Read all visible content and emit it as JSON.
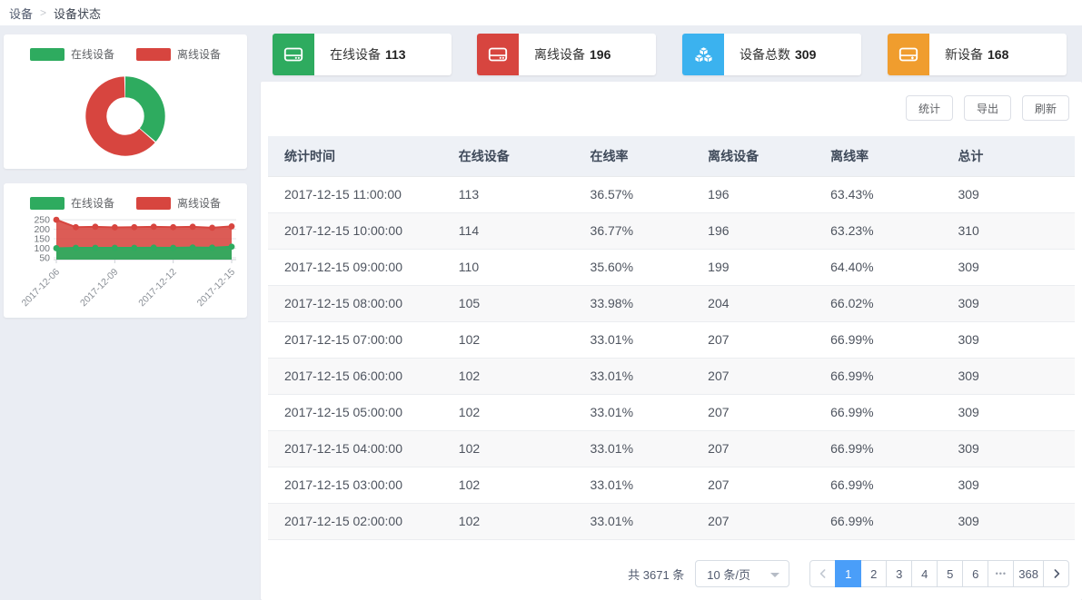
{
  "breadcrumb": {
    "separator": ">",
    "items": [
      {
        "label": "设备"
      },
      {
        "label": "设备状态"
      }
    ]
  },
  "colors": {
    "online_green": "#2eab5f",
    "offline_red": "#d7453f",
    "total_blue": "#3bb2ef",
    "new_orange": "#f09d2e",
    "accent_blue": "#4a9ef9"
  },
  "stat_cards": [
    {
      "key": "online-devices",
      "icon": "hdd-icon",
      "color": "#2eab5f",
      "label": "在线设备",
      "value": "113"
    },
    {
      "key": "offline-devices",
      "icon": "hdd-icon",
      "color": "#d7453f",
      "label": "离线设备",
      "value": "196"
    },
    {
      "key": "total-devices",
      "icon": "cubes-icon",
      "color": "#3bb2ef",
      "label": "设备总数",
      "value": "309"
    },
    {
      "key": "new-devices",
      "icon": "hdd-plus-icon",
      "color": "#f09d2e",
      "label": "新设备",
      "value": "168"
    }
  ],
  "legend": [
    {
      "label": "在线设备",
      "color": "#2eab5f"
    },
    {
      "label": "离线设备",
      "color": "#d7453f"
    }
  ],
  "chart_data": [
    {
      "type": "pie",
      "subtype": "donut",
      "labels": [
        "在线设备",
        "离线设备"
      ],
      "values": [
        113,
        196
      ],
      "colors": [
        "#2eab5f",
        "#d7453f"
      ],
      "legend_position": "top",
      "start_angle_deg": 90,
      "direction": "clockwise"
    },
    {
      "type": "area",
      "x": [
        "2017-12-06",
        "2017-12-07",
        "2017-12-08",
        "2017-12-09",
        "2017-12-10",
        "2017-12-11",
        "2017-12-12",
        "2017-12-13",
        "2017-12-14",
        "2017-12-15"
      ],
      "x_tick_labels": [
        "2017-12-06",
        "2017-12-09",
        "2017-12-12",
        "2017-12-15"
      ],
      "series": [
        {
          "name": "离线设备",
          "color": "#d7453f",
          "values": [
            250,
            211,
            213,
            210,
            211,
            213,
            211,
            213,
            208,
            215
          ]
        },
        {
          "name": "在线设备",
          "color": "#2eab5f",
          "values": [
            100,
            102,
            102,
            102,
            102,
            103,
            102,
            104,
            103,
            108
          ]
        }
      ],
      "y_ticks": [
        50,
        100,
        150,
        200,
        250
      ],
      "ylim": [
        40,
        260
      ],
      "grid": "horizontal",
      "legend_position": "top"
    }
  ],
  "toolbar": {
    "buttons": [
      {
        "label": "统计"
      },
      {
        "label": "导出"
      },
      {
        "label": "刷新"
      }
    ]
  },
  "table": {
    "columns": [
      "统计时间",
      "在线设备",
      "在线率",
      "离线设备",
      "离线率",
      "总计"
    ],
    "col_widths": [
      "21.6%",
      "16.3%",
      "14.6%",
      "15.2%",
      "15.8%",
      "16.5%"
    ],
    "rows": [
      [
        "2017-12-15 11:00:00",
        "113",
        "36.57%",
        "196",
        "63.43%",
        "309"
      ],
      [
        "2017-12-15 10:00:00",
        "114",
        "36.77%",
        "196",
        "63.23%",
        "310"
      ],
      [
        "2017-12-15 09:00:00",
        "110",
        "35.60%",
        "199",
        "64.40%",
        "309"
      ],
      [
        "2017-12-15 08:00:00",
        "105",
        "33.98%",
        "204",
        "66.02%",
        "309"
      ],
      [
        "2017-12-15 07:00:00",
        "102",
        "33.01%",
        "207",
        "66.99%",
        "309"
      ],
      [
        "2017-12-15 06:00:00",
        "102",
        "33.01%",
        "207",
        "66.99%",
        "309"
      ],
      [
        "2017-12-15 05:00:00",
        "102",
        "33.01%",
        "207",
        "66.99%",
        "309"
      ],
      [
        "2017-12-15 04:00:00",
        "102",
        "33.01%",
        "207",
        "66.99%",
        "309"
      ],
      [
        "2017-12-15 03:00:00",
        "102",
        "33.01%",
        "207",
        "66.99%",
        "309"
      ],
      [
        "2017-12-15 02:00:00",
        "102",
        "33.01%",
        "207",
        "66.99%",
        "309"
      ]
    ]
  },
  "pagination": {
    "total": "共 3671 条",
    "page_size": "10 条/页",
    "pages": [
      "1",
      "2",
      "3",
      "4",
      "5",
      "6",
      "•••",
      "368"
    ],
    "active_page": "1"
  }
}
